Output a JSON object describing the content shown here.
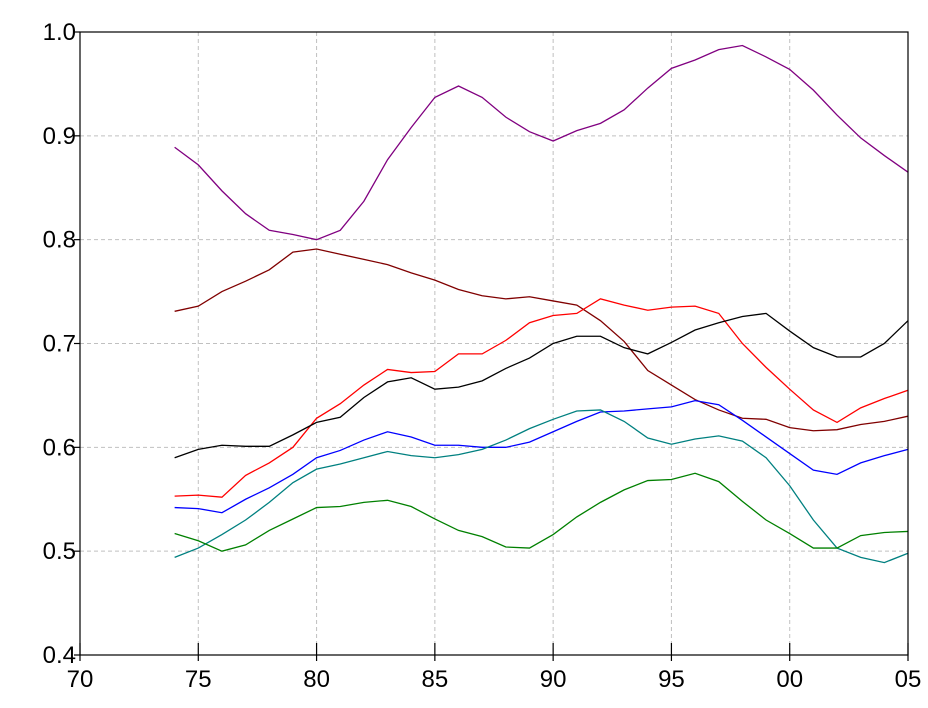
{
  "chart_data": {
    "type": "line",
    "x": [
      1974,
      1975,
      1976,
      1977,
      1978,
      1979,
      1980,
      1981,
      1982,
      1983,
      1984,
      1985,
      1986,
      1987,
      1988,
      1989,
      1990,
      1991,
      1992,
      1993,
      1994,
      1995,
      1996,
      1997,
      1998,
      1999,
      2000,
      2001,
      2002,
      2003,
      2004,
      2005
    ],
    "series": [
      {
        "color": "#800080",
        "values": [
          0.889,
          0.872,
          0.847,
          0.825,
          0.809,
          0.805,
          0.8,
          0.809,
          0.837,
          0.877,
          0.908,
          0.937,
          0.948,
          0.937,
          0.918,
          0.904,
          0.895,
          0.905,
          0.912,
          0.925,
          0.946,
          0.965,
          0.973,
          0.983,
          0.987,
          0.976,
          0.964,
          0.944,
          0.92,
          0.898,
          0.881,
          0.865
        ]
      },
      {
        "color": "#800000",
        "values": [
          0.731,
          0.736,
          0.75,
          0.76,
          0.771,
          0.788,
          0.791,
          0.786,
          0.781,
          0.776,
          0.768,
          0.761,
          0.752,
          0.746,
          0.743,
          0.745,
          0.741,
          0.737,
          0.722,
          0.702,
          0.674,
          0.66,
          0.646,
          0.636,
          0.628,
          0.627,
          0.619,
          0.616,
          0.617,
          0.622,
          0.625,
          0.63
        ]
      },
      {
        "color": "#ff0000",
        "values": [
          0.553,
          0.554,
          0.552,
          0.573,
          0.585,
          0.6,
          0.628,
          0.642,
          0.66,
          0.675,
          0.672,
          0.673,
          0.69,
          0.69,
          0.703,
          0.72,
          0.727,
          0.729,
          0.743,
          0.737,
          0.732,
          0.735,
          0.736,
          0.729,
          0.7,
          0.677,
          0.656,
          0.636,
          0.624,
          0.638,
          0.647,
          0.655
        ]
      },
      {
        "color": "#000000",
        "values": [
          0.59,
          0.598,
          0.602,
          0.601,
          0.601,
          0.612,
          0.624,
          0.629,
          0.648,
          0.663,
          0.667,
          0.656,
          0.658,
          0.664,
          0.676,
          0.686,
          0.7,
          0.707,
          0.707,
          0.696,
          0.69,
          0.701,
          0.713,
          0.72,
          0.726,
          0.729,
          0.712,
          0.696,
          0.687,
          0.687,
          0.7,
          0.722
        ]
      },
      {
        "color": "#0000ff",
        "values": [
          0.542,
          0.541,
          0.537,
          0.55,
          0.561,
          0.574,
          0.59,
          0.597,
          0.607,
          0.615,
          0.61,
          0.602,
          0.602,
          0.6,
          0.6,
          0.605,
          0.615,
          0.625,
          0.634,
          0.635,
          0.637,
          0.639,
          0.645,
          0.641,
          0.626,
          0.61,
          0.594,
          0.578,
          0.574,
          0.585,
          0.592,
          0.598
        ]
      },
      {
        "color": "#008080",
        "values": [
          0.494,
          0.503,
          0.516,
          0.53,
          0.547,
          0.566,
          0.579,
          0.584,
          0.59,
          0.596,
          0.592,
          0.59,
          0.593,
          0.598,
          0.607,
          0.618,
          0.627,
          0.635,
          0.636,
          0.625,
          0.609,
          0.603,
          0.608,
          0.611,
          0.606,
          0.59,
          0.563,
          0.53,
          0.503,
          0.494,
          0.489,
          0.498
        ]
      },
      {
        "color": "#008000",
        "values": [
          0.517,
          0.51,
          0.5,
          0.506,
          0.52,
          0.531,
          0.542,
          0.543,
          0.547,
          0.549,
          0.543,
          0.531,
          0.52,
          0.514,
          0.504,
          0.503,
          0.516,
          0.533,
          0.547,
          0.559,
          0.568,
          0.569,
          0.575,
          0.567,
          0.548,
          0.53,
          0.517,
          0.503,
          0.503,
          0.515,
          0.518,
          0.519
        ]
      }
    ],
    "xlim": [
      1970,
      2005
    ],
    "xticks": [
      {
        "value": 1970,
        "label": "70"
      },
      {
        "value": 1975,
        "label": "75"
      },
      {
        "value": 1980,
        "label": "80"
      },
      {
        "value": 1985,
        "label": "85"
      },
      {
        "value": 1990,
        "label": "90"
      },
      {
        "value": 1995,
        "label": "95"
      },
      {
        "value": 2000,
        "label": "00"
      },
      {
        "value": 2005,
        "label": "05"
      }
    ],
    "ylim": [
      0.4,
      1
    ],
    "yticks": [
      0.4,
      0.5,
      0.6,
      0.7,
      0.8,
      0.9,
      {
        "value": 1,
        "label": "1.0"
      }
    ],
    "grid": true
  }
}
